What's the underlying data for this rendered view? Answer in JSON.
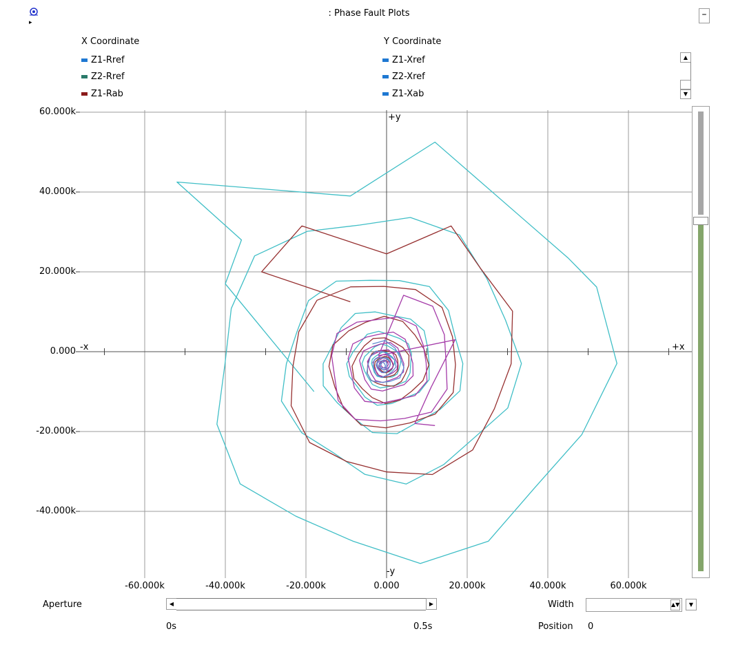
{
  "window": {
    "title": ": Phase Fault Plots",
    "collapse_glyph": "▸",
    "minimize_glyph": "–"
  },
  "legend": {
    "x_header": "X Coordinate",
    "y_header": "Y Coordinate",
    "x_items": [
      {
        "label": "Z1-Rref",
        "color": "#1e78d2"
      },
      {
        "label": "Z2-Rref",
        "color": "#2a7a6a"
      },
      {
        "label": "Z1-Rab",
        "color": "#8b1a1a"
      }
    ],
    "y_items": [
      {
        "label": "Z1-Xref",
        "color": "#1e78d2"
      },
      {
        "label": "Z2-Xref",
        "color": "#1e78d2"
      },
      {
        "label": "Z1-Xab",
        "color": "#1e78d2"
      }
    ]
  },
  "chart_data": {
    "type": "line",
    "x_tick_labels": [
      "-60.000k",
      "-40.000k",
      "-20.000k",
      "0.000",
      "20.000k",
      "40.000k",
      "60.000k"
    ],
    "y_tick_labels": [
      "60.000k",
      "40.000k",
      "20.000k",
      "0.000",
      "-20.000k",
      "-40.000k"
    ],
    "x_ticks": [
      -60000,
      -40000,
      -20000,
      0,
      20000,
      40000,
      60000
    ],
    "y_ticks": [
      60000,
      40000,
      20000,
      0,
      -20000,
      -40000
    ],
    "xlim": [
      -75000,
      75000
    ],
    "ylim": [
      -55000,
      62000
    ],
    "axis_labels": {
      "plus_x": "+x",
      "minus_x": "-x",
      "plus_y": "+y",
      "minus_y": "-y"
    },
    "grid": true,
    "series_colors": [
      "#3fbec6",
      "#963030",
      "#a43aa8",
      "#5f8ad0"
    ]
  },
  "controls": {
    "aperture_label": "Aperture",
    "aperture_start": "0s",
    "aperture_end": "0.5s",
    "width_label": "Width",
    "position_label": "Position",
    "position_value": "0"
  }
}
